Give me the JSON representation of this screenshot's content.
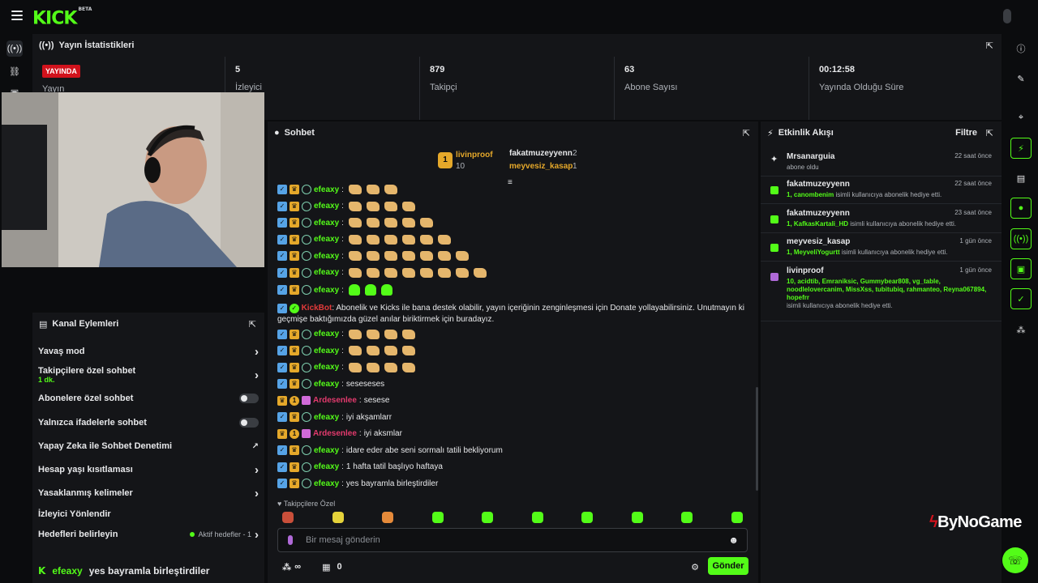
{
  "brand": {
    "logo": "KICK",
    "tag": "BETA"
  },
  "stats": {
    "title": "Yayın İstatistikleri",
    "live_badge": "YAYINDA",
    "live_label": "Yayın",
    "viewers_value": "5",
    "viewers_label": "İzleyici",
    "followers_value": "879",
    "followers_label": "Takipçi",
    "subs_value": "63",
    "subs_label": "Abone Sayısı",
    "uptime_value": "00:12:58",
    "uptime_label": "Yayında Olduğu Süre"
  },
  "actions": {
    "title": "Kanal Eylemleri",
    "slow_mode": "Yavaş mod",
    "followers_only": "Takipçilere özel sohbet",
    "followers_only_sub": "1 dk.",
    "subs_only": "Abonelere özel sohbet",
    "emotes_only": "Yalnızca ifadelerle sohbet",
    "ai_moderation": "Yapay Zeka ile Sohbet Denetimi",
    "account_age": "Hesap yaşı kısıtlaması",
    "banned_words": "Yasaklanmış kelimeler",
    "redirect": "İzleyici Yönlendir",
    "goals": "Hedefleri belirleyin",
    "active_goals": "Aktif hedefler - 1",
    "pinned_user": "efeaxy",
    "pinned_text": "yes bayramla birleştirdiler"
  },
  "chat": {
    "title": "Sohbet",
    "top_gifter": "livinproof",
    "top_gifter_count": "10",
    "gifter2": "fakatmuzeyyenn",
    "gifter2_count": "2",
    "gifter3": "meyvesiz_kasap",
    "gifter3_count": "1",
    "messages": [
      {
        "user": "efeaxy",
        "text": "",
        "emotes": 3
      },
      {
        "user": "efeaxy",
        "text": "",
        "emotes": 4
      },
      {
        "user": "efeaxy",
        "text": "",
        "emotes": 5
      },
      {
        "user": "efeaxy",
        "text": "",
        "emotes": 6
      },
      {
        "user": "efeaxy",
        "text": "",
        "emotes": 7
      },
      {
        "user": "efeaxy",
        "text": "",
        "emotes": 8
      },
      {
        "user": "efeaxy",
        "text": "",
        "emotes": 3
      }
    ],
    "bot_user": "KickBot",
    "bot_text": "Abonelik ve Kicks ile bana destek olabilir, yayın içeriğinin zenginleşmesi için Donate yollayabilirsiniz. Unutmayın ki geçmişe baktığımızda güzel anılar biriktirmek için buradayız.",
    "m_after": [
      {
        "user": "efeaxy",
        "text": "",
        "emotes": 4
      },
      {
        "user": "efeaxy",
        "text": "",
        "emotes": 4
      },
      {
        "user": "efeaxy",
        "text": "",
        "emotes": 4
      },
      {
        "user": "efeaxy",
        "text": "seseseses"
      },
      {
        "user": "Ardesenlee",
        "text": "sesese"
      },
      {
        "user": "efeaxy",
        "text": "iyi akşamlarr"
      },
      {
        "user": "Ardesenlee",
        "text": "iyi aksmlar"
      },
      {
        "user": "efeaxy",
        "text": "idare eder abe seni sormalı tatili bekliyorum"
      },
      {
        "user": "efeaxy",
        "text": "1 hafta tatil başlıyo haftaya"
      },
      {
        "user": "efeaxy",
        "text": "yes bayramla birleştirdiler"
      }
    ],
    "followers_only_label": "Takipçilere Özel",
    "input_placeholder": "Bir mesaj gönderin",
    "points": "∞",
    "gift_count": "0",
    "send_label": "Gönder"
  },
  "activity": {
    "title": "Etkinlik Akışı",
    "filter": "Filtre",
    "events": [
      {
        "name": "Mrsanarguia",
        "time": "22 saat önce",
        "desc": "abone oldu",
        "highlight": ""
      },
      {
        "name": "fakatmuzeyyenn",
        "time": "22 saat önce",
        "highlight": "1, canombenim",
        "desc": " isimli kullanıcıya abonelik hediye etti."
      },
      {
        "name": "fakatmuzeyyenn",
        "time": "23 saat önce",
        "highlight": "1, KafkasKartali_HD",
        "desc": " isimli kullanıcıya abonelik hediye etti."
      },
      {
        "name": "meyvesiz_kasap",
        "time": "1 gün önce",
        "highlight": "1, MeyveliYogurtt",
        "desc": " isimli kullanıcıya abonelik hediye etti."
      },
      {
        "name": "livinproof",
        "time": "1 gün önce",
        "highlight": "10, acidtib, Emraniksic, Gummybear808, vg_table, noodlelovercanim, MissXss, tubitubiq, rahmanteo, Reyna067894, hopefrr",
        "desc": "isimli kullanıcıya abonelik hediye etti."
      }
    ]
  },
  "watermark": "ByNoGame",
  "colors": {
    "accent": "#53fc18",
    "live": "#d1121c",
    "panel": "#141518"
  }
}
